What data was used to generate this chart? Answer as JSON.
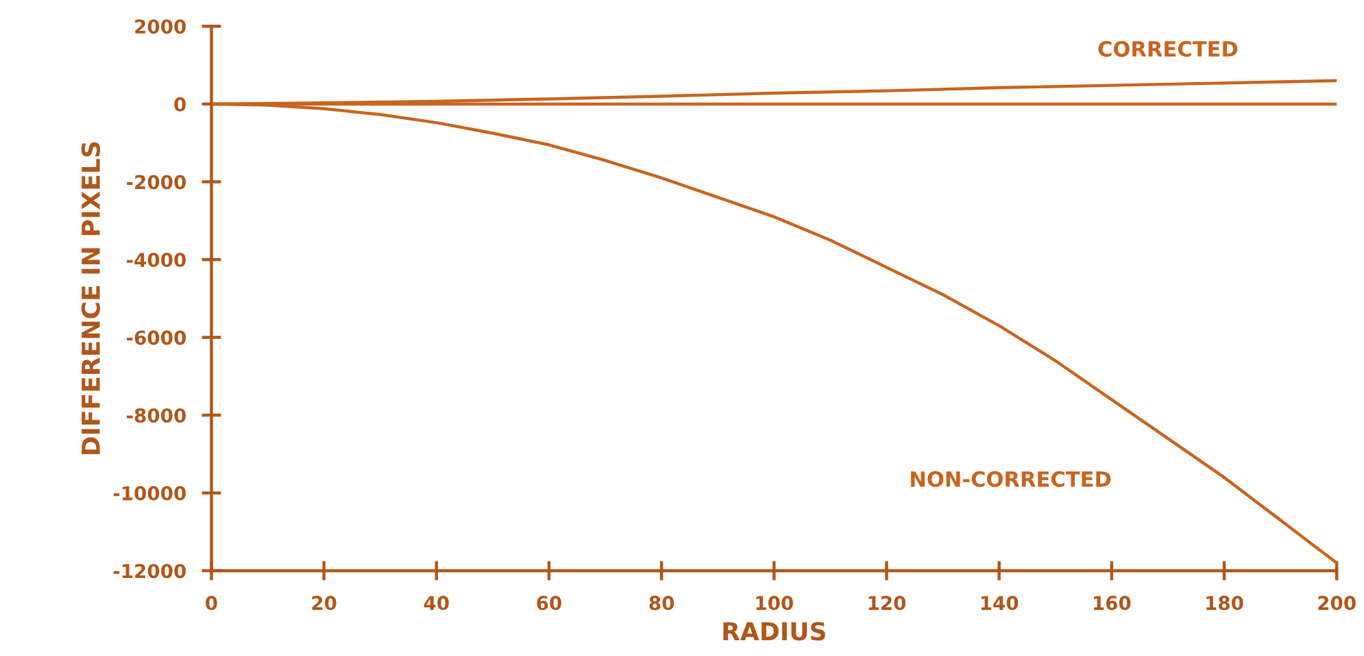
{
  "chart_data": {
    "type": "line",
    "xlabel": "RADIUS",
    "ylabel": "DIFFERENCE IN PIXELS",
    "xlim": [
      0,
      200
    ],
    "xticks": [
      0,
      20,
      40,
      60,
      80,
      100,
      120,
      140,
      160,
      180,
      200
    ],
    "ylim": [
      -12000,
      2000
    ],
    "yticks": [
      -12000,
      -10000,
      -8000,
      -6000,
      -4000,
      -2000,
      0,
      2000
    ],
    "grid": false,
    "legend": false,
    "marker": "none",
    "line_style": "solid",
    "ref_lines": [
      {
        "axis": "y",
        "value": 0,
        "color": "#c8641e",
        "line_style": "solid"
      }
    ],
    "series": [
      {
        "name": "CORRECTED",
        "color": "#c8641e",
        "x": [
          0,
          20,
          40,
          60,
          80,
          100,
          120,
          140,
          160,
          180,
          200
        ],
        "values": [
          0,
          30,
          70,
          130,
          200,
          280,
          340,
          420,
          480,
          540,
          600
        ]
      },
      {
        "name": "NON-CORRECTED",
        "color": "#c8641e",
        "x": [
          0,
          10,
          20,
          30,
          40,
          50,
          60,
          70,
          80,
          90,
          100,
          110,
          120,
          130,
          140,
          150,
          160,
          170,
          180,
          190,
          200
        ],
        "values": [
          0,
          -30,
          -120,
          -270,
          -480,
          -750,
          -1050,
          -1450,
          -1900,
          -2400,
          -2900,
          -3500,
          -4200,
          -4900,
          -5700,
          -6600,
          -7600,
          -8600,
          -9600,
          -10700,
          -11800
        ]
      }
    ]
  }
}
